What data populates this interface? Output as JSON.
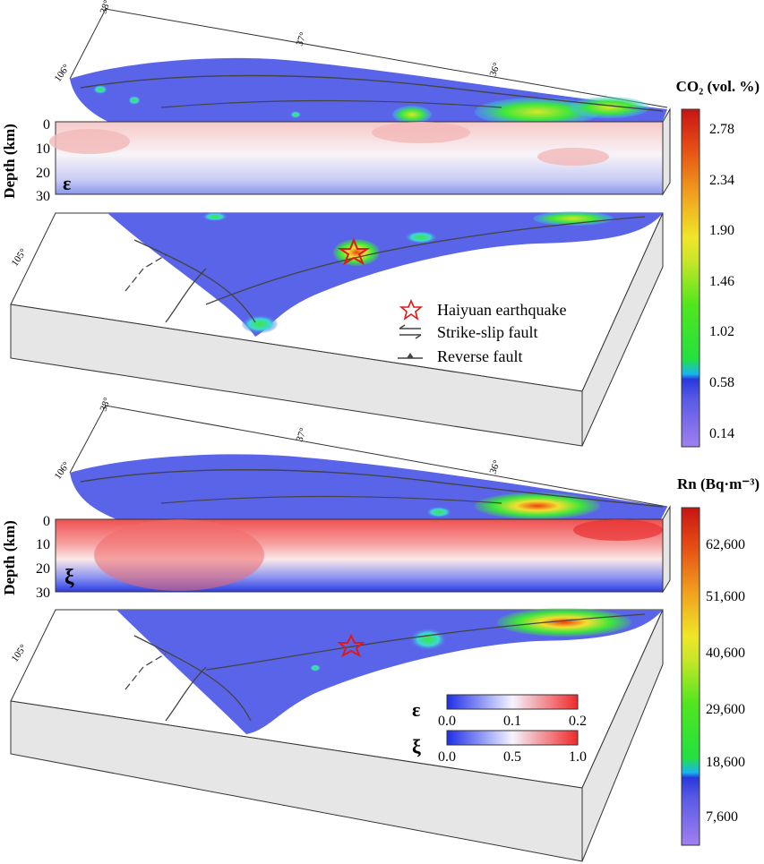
{
  "panels": [
    {
      "id": "co2",
      "latitude_labels": [
        "38°",
        "37°",
        "36°"
      ],
      "longitude_labels": [
        "106°",
        "105°"
      ],
      "depth_axis_title": "Depth (km)",
      "depth_ticks": [
        "0",
        "10",
        "20",
        "30"
      ],
      "section_symbol": "ε",
      "colorbar": {
        "title_html": "CO₂ (vol. %)",
        "ticks": [
          "2.78",
          "2.34",
          "1.90",
          "1.46",
          "1.02",
          "0.58",
          "0.14"
        ]
      }
    },
    {
      "id": "rn",
      "latitude_labels": [
        "38°",
        "37°",
        "36°"
      ],
      "longitude_labels": [
        "106°",
        "105°"
      ],
      "depth_axis_title": "Depth (km)",
      "depth_ticks": [
        "0",
        "10",
        "20",
        "30"
      ],
      "section_symbol": "ξ",
      "colorbar": {
        "title_html": "Rn (Bq·m⁻³)",
        "ticks": [
          "62,600",
          "51,600",
          "40,600",
          "29,600",
          "18,600",
          "7,600"
        ]
      }
    }
  ],
  "legend": {
    "earthquake": "Haiyuan earthquake",
    "strike_slip": "Strike-slip fault",
    "reverse": "Reverse fault"
  },
  "section_scales": {
    "epsilon": {
      "symbol": "ε",
      "ticks": [
        "0.0",
        "0.1",
        "0.2"
      ]
    },
    "xi": {
      "symbol": "ξ",
      "ticks": [
        "0.0",
        "0.5",
        "1.0"
      ]
    }
  },
  "colors": {
    "low": "#5060e8",
    "mid_low": "#3cc8f0",
    "mid": "#3ce63c",
    "high_mid": "#e6e63c",
    "high": "#cc1414",
    "section_low": "#2a3cf0",
    "section_high": "#f03030",
    "block_side": "#e6e6e6",
    "fault": "#444444",
    "star": "#e01818"
  }
}
